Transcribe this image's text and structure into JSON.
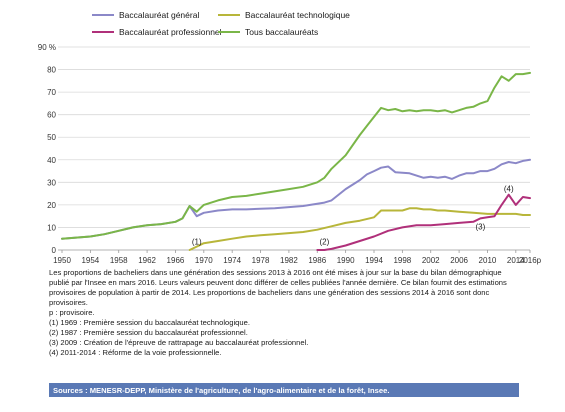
{
  "chart_data": {
    "type": "line",
    "title": "",
    "xlabel": "",
    "ylabel": "",
    "y_unit_label": "90 %",
    "ylim": [
      0,
      90
    ],
    "grid": "horizontal",
    "legend_position": "top",
    "x_tick_labels": [
      "1950",
      "1954",
      "1958",
      "1962",
      "1966",
      "1970",
      "1974",
      "1978",
      "1982",
      "1986",
      "1990",
      "1994",
      "1998",
      "2002",
      "2006",
      "2010",
      "2014",
      "2016p"
    ],
    "y_tick_labels": [
      "0",
      "10",
      "20",
      "30",
      "40",
      "50",
      "60",
      "70",
      "80",
      "90 %"
    ],
    "series": [
      {
        "name": "Baccalauréat général",
        "color": "#8b88c8",
        "points": [
          [
            1950,
            5
          ],
          [
            1954,
            6
          ],
          [
            1956,
            7
          ],
          [
            1958,
            8.5
          ],
          [
            1960,
            10
          ],
          [
            1962,
            11
          ],
          [
            1964,
            11.5
          ],
          [
            1966,
            12.5
          ],
          [
            1967,
            14
          ],
          [
            1968,
            19.5
          ],
          [
            1969,
            15
          ],
          [
            1970,
            16.5
          ],
          [
            1972,
            17.5
          ],
          [
            1974,
            18
          ],
          [
            1976,
            18
          ],
          [
            1978,
            18.3
          ],
          [
            1980,
            18.5
          ],
          [
            1982,
            19
          ],
          [
            1984,
            19.5
          ],
          [
            1986,
            20.5
          ],
          [
            1987,
            21
          ],
          [
            1988,
            22
          ],
          [
            1990,
            27
          ],
          [
            1992,
            31
          ],
          [
            1993,
            33.5
          ],
          [
            1994,
            35
          ],
          [
            1995,
            36.5
          ],
          [
            1996,
            37
          ],
          [
            1997,
            34.5
          ],
          [
            1999,
            34
          ],
          [
            2000,
            33
          ],
          [
            2001,
            32
          ],
          [
            2002,
            32.5
          ],
          [
            2003,
            32
          ],
          [
            2004,
            32.5
          ],
          [
            2005,
            31.5
          ],
          [
            2006,
            33
          ],
          [
            2007,
            34
          ],
          [
            2008,
            34
          ],
          [
            2009,
            35
          ],
          [
            2010,
            35
          ],
          [
            2011,
            36
          ],
          [
            2012,
            38
          ],
          [
            2013,
            39
          ],
          [
            2014,
            38.5
          ],
          [
            2015,
            39.5
          ],
          [
            2016,
            40
          ]
        ]
      },
      {
        "name": "Baccalauréat technologique",
        "color": "#b8b63a",
        "points": [
          [
            1968,
            0
          ],
          [
            1969,
            1.5
          ],
          [
            1970,
            3
          ],
          [
            1972,
            4
          ],
          [
            1974,
            5
          ],
          [
            1976,
            6
          ],
          [
            1978,
            6.5
          ],
          [
            1980,
            7
          ],
          [
            1982,
            7.5
          ],
          [
            1984,
            8
          ],
          [
            1986,
            9
          ],
          [
            1988,
            10.5
          ],
          [
            1990,
            12
          ],
          [
            1992,
            13
          ],
          [
            1994,
            14.5
          ],
          [
            1995,
            17.5
          ],
          [
            1996,
            17.5
          ],
          [
            1998,
            17.5
          ],
          [
            1999,
            18.5
          ],
          [
            2000,
            18.5
          ],
          [
            2001,
            18
          ],
          [
            2002,
            18
          ],
          [
            2003,
            17.5
          ],
          [
            2004,
            17.5
          ],
          [
            2006,
            17
          ],
          [
            2008,
            16.5
          ],
          [
            2010,
            16
          ],
          [
            2011,
            16
          ],
          [
            2012,
            16
          ],
          [
            2013,
            16
          ],
          [
            2014,
            16
          ],
          [
            2015,
            15.5
          ],
          [
            2016,
            15.5
          ]
        ]
      },
      {
        "name": "Baccalauréat professionnel",
        "color": "#b0307a",
        "points": [
          [
            1986,
            0
          ],
          [
            1987,
            0
          ],
          [
            1988,
            0.5
          ],
          [
            1990,
            2
          ],
          [
            1992,
            4
          ],
          [
            1994,
            6
          ],
          [
            1996,
            8.5
          ],
          [
            1998,
            10
          ],
          [
            2000,
            11
          ],
          [
            2002,
            11
          ],
          [
            2004,
            11.5
          ],
          [
            2006,
            12
          ],
          [
            2008,
            12.5
          ],
          [
            2009,
            14
          ],
          [
            2010,
            14.5
          ],
          [
            2011,
            15
          ],
          [
            2012,
            20
          ],
          [
            2013,
            24.5
          ],
          [
            2014,
            20
          ],
          [
            2015,
            23.5
          ],
          [
            2016,
            23
          ]
        ]
      },
      {
        "name": "Tous baccalauréats",
        "color": "#7ab648",
        "points": [
          [
            1950,
            5
          ],
          [
            1954,
            6
          ],
          [
            1956,
            7
          ],
          [
            1958,
            8.5
          ],
          [
            1960,
            10
          ],
          [
            1962,
            11
          ],
          [
            1964,
            11.5
          ],
          [
            1966,
            12.5
          ],
          [
            1967,
            14
          ],
          [
            1968,
            19.5
          ],
          [
            1969,
            17
          ],
          [
            1970,
            20
          ],
          [
            1972,
            22
          ],
          [
            1974,
            23.5
          ],
          [
            1976,
            24
          ],
          [
            1978,
            25
          ],
          [
            1980,
            26
          ],
          [
            1982,
            27
          ],
          [
            1984,
            28
          ],
          [
            1986,
            30
          ],
          [
            1987,
            32
          ],
          [
            1988,
            36
          ],
          [
            1990,
            42
          ],
          [
            1992,
            51
          ],
          [
            1993,
            55
          ],
          [
            1994,
            59
          ],
          [
            1995,
            63
          ],
          [
            1996,
            62
          ],
          [
            1997,
            62.5
          ],
          [
            1998,
            61.5
          ],
          [
            1999,
            62
          ],
          [
            2000,
            61.5
          ],
          [
            2001,
            62
          ],
          [
            2002,
            62
          ],
          [
            2003,
            61.5
          ],
          [
            2004,
            62
          ],
          [
            2005,
            61
          ],
          [
            2006,
            62
          ],
          [
            2007,
            63
          ],
          [
            2008,
            63.5
          ],
          [
            2009,
            65
          ],
          [
            2010,
            66
          ],
          [
            2011,
            72
          ],
          [
            2012,
            77
          ],
          [
            2013,
            75
          ],
          [
            2014,
            78
          ],
          [
            2015,
            78
          ],
          [
            2016,
            78.5
          ]
        ]
      }
    ],
    "annotations": [
      {
        "label": "(1)",
        "x": 1969,
        "y": 2.5
      },
      {
        "label": "(2)",
        "x": 1987,
        "y": 2.5
      },
      {
        "label": "(3)",
        "x": 2009,
        "y": 9
      },
      {
        "label": "(4)",
        "x": 2013,
        "y": 26
      }
    ]
  },
  "notes": {
    "paragraph": "Les proportions de bacheliers dans une génération des sessions 2013 à 2016 ont été mises à jour sur la base du bilan démographique publié par l'Insee en mars 2016. Leurs valeurs peuvent donc différer de celles publiées l'année dernière. Ce bilan fournit des estimations provisoires de population à partir de 2014. Les proportions de bacheliers dans une génération des sessions 2014 à 2016 sont donc provisoires.",
    "p_note": "p : provisoire.",
    "note1": "(1) 1969 : Première session du baccalauréat technologique.",
    "note2": "(2) 1987 : Première session du baccalauréat professionnel.",
    "note3": "(3) 2009 :  Création de l'épreuve de rattrapage au baccalauréat professionnel.",
    "note4": "(4) 2011-2014 : Réforme de la voie professionnelle."
  },
  "sources": {
    "text": "Sources : MENESR-DEPP, Ministère de l'agriculture, de l'agro-alimentaire et de la forêt, Insee.",
    "bar_color": "#5a79b5"
  }
}
